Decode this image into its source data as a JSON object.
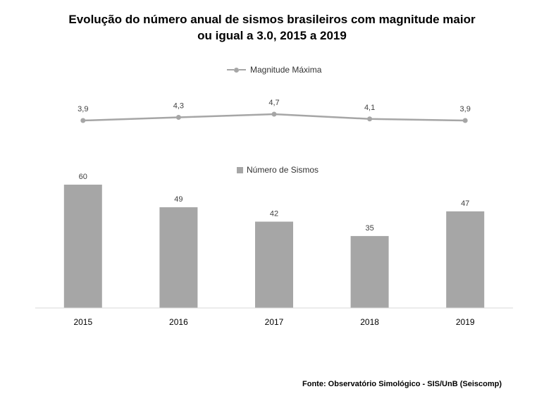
{
  "title_line1": "Evolução do número anual de sismos brasileiros com magnitude maior",
  "title_line2": "ou igual a 3.0, 2015 a 2019",
  "source": "Fonte: Observatório Simológico - SIS/UnB (Seiscomp)",
  "colors": {
    "series": "#a6a6a6",
    "axis": "#d9d9d9",
    "text": "#404040"
  },
  "chart_data": [
    {
      "type": "line",
      "categories": [
        "2015",
        "2016",
        "2017",
        "2018",
        "2019"
      ],
      "series": [
        {
          "name": "Magnitude Máxima",
          "values": [
            3.9,
            4.3,
            4.7,
            4.1,
            3.9
          ]
        }
      ],
      "value_labels": [
        "3,9",
        "4,3",
        "4,7",
        "4,1",
        "3,9"
      ],
      "legend": "top-center"
    },
    {
      "type": "bar",
      "categories": [
        "2015",
        "2016",
        "2017",
        "2018",
        "2019"
      ],
      "series": [
        {
          "name": "Número de Sismos",
          "values": [
            60,
            49,
            42,
            35,
            47
          ]
        }
      ],
      "ylim": [
        0,
        60
      ],
      "legend": "top-center"
    }
  ]
}
